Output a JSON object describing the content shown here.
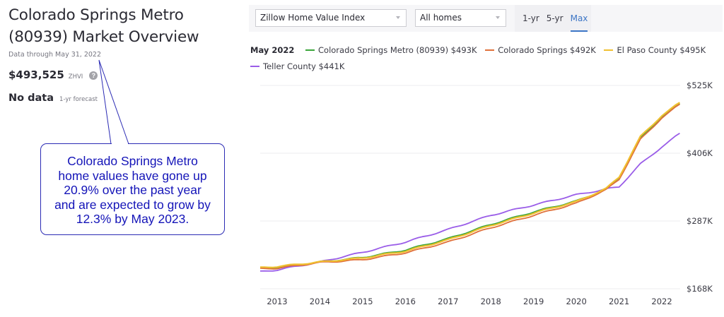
{
  "page": {
    "title_line1": "Colorado Springs Metro",
    "title_line2": "(80939) Market Overview",
    "data_through": "Data through May 31, 2022",
    "zhvi_value": "$493,525",
    "zhvi_label": "ZHVI",
    "help_icon": "?",
    "forecast_value": "No data",
    "forecast_label": "1-yr forecast"
  },
  "callout": {
    "lines": [
      "Colorado Springs Metro",
      "home values have gone up",
      "20.9% over the past year",
      "and are expected to grow by",
      "12.3% by May 2023."
    ],
    "border_color": "#2b2bb4",
    "text_color": "#1414b8"
  },
  "toolbar": {
    "metric_select": "Zillow Home Value Index",
    "home_type_select": "All homes",
    "tabs": [
      {
        "label": "1-yr",
        "active": false
      },
      {
        "label": "5-yr",
        "active": false
      },
      {
        "label": "Max",
        "active": true
      }
    ],
    "accent": "#3d76c6"
  },
  "legend": {
    "date": "May 2022",
    "items": [
      {
        "label": "Colorado Springs Metro (80939) $493K",
        "color": "#3aa63a"
      },
      {
        "label": "Colorado Springs $492K",
        "color": "#e0703a"
      },
      {
        "label": "El Paso County $495K",
        "color": "#f0c030"
      },
      {
        "label": "Teller County $441K",
        "color": "#9a5de8"
      }
    ]
  },
  "chart_data": {
    "type": "line",
    "title": "",
    "xlabel": "",
    "ylabel": "",
    "x": [
      2012.6,
      2013,
      2014,
      2015,
      2016,
      2017,
      2018,
      2019,
      2020,
      2020.7,
      2021,
      2021.5,
      2022,
      2022.42
    ],
    "x_ticks": [
      "2013",
      "2014",
      "2015",
      "2016",
      "2017",
      "2018",
      "2019",
      "2020",
      "2021",
      "2022"
    ],
    "y_ticks": [
      "$525K",
      "$406K",
      "$287K",
      "$168K"
    ],
    "ylim": [
      168,
      525
    ],
    "grid": true,
    "series": [
      {
        "name": "Colorado Springs Metro (80939)",
        "color": "#3aa63a",
        "values": [
          204,
          206,
          215,
          223,
          236,
          256,
          281,
          303,
          322,
          343,
          363,
          433,
          470,
          493
        ]
      },
      {
        "name": "Colorado Springs",
        "color": "#e0703a",
        "values": [
          203,
          204,
          214,
          219,
          231,
          250,
          275,
          297,
          318,
          342,
          360,
          430,
          468,
          492
        ]
      },
      {
        "name": "El Paso County",
        "color": "#f0c030",
        "values": [
          205,
          207,
          215,
          222,
          234,
          254,
          279,
          301,
          321,
          344,
          364,
          435,
          472,
          495
        ]
      },
      {
        "name": "Teller County",
        "color": "#9a5de8",
        "values": [
          198,
          201,
          215,
          232,
          250,
          272,
          297,
          315,
          333,
          343,
          347,
          387,
          417,
          441
        ]
      }
    ]
  }
}
